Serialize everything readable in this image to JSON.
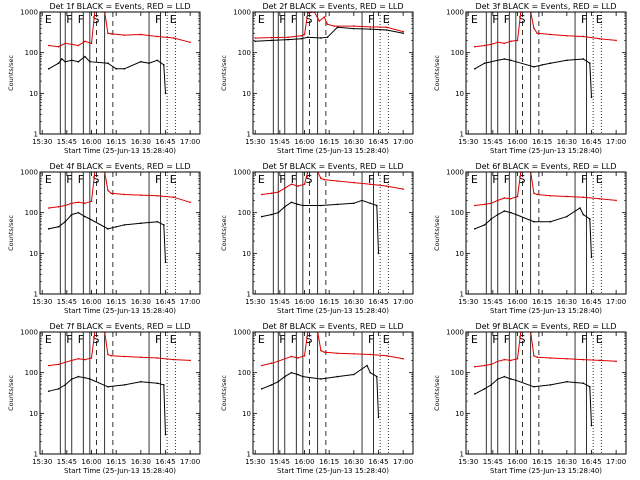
{
  "xlabel": "Start Time (25-Jun-13 15:28:40)",
  "ylabel": "Counts/sec",
  "colors": {
    "events": "#000000",
    "lld": "#dd0000",
    "frame": "#000000"
  },
  "chart_data": [
    {
      "type": "line",
      "title": "Det 1f BLACK = Events, RED = LLD",
      "xticks": [
        "15:30",
        "15:45",
        "16:00",
        "16:15",
        "16:30",
        "16:45",
        "17:00"
      ],
      "yticks": [
        "1",
        "10",
        "100",
        "1000"
      ],
      "xlim": [
        "15:28:40",
        "17:06:00"
      ],
      "ylim": [
        1,
        1000
      ],
      "yscale": "log",
      "flag_letters": [
        "E",
        "F",
        "F",
        "S",
        "F",
        "E"
      ],
      "series": [
        {
          "name": "Events",
          "x": [
            "15:34",
            "15:40",
            "15:42",
            "15:44",
            "15:48",
            "15:52",
            "15:56",
            "15:59",
            "16:10",
            "16:15",
            "16:20",
            "16:30",
            "16:35",
            "16:40",
            "16:44",
            "16:45"
          ],
          "values": [
            40,
            55,
            70,
            60,
            65,
            60,
            80,
            60,
            55,
            40,
            40,
            60,
            55,
            65,
            50,
            10
          ]
        },
        {
          "name": "LLD",
          "x": [
            "15:34",
            "15:40",
            "15:44",
            "15:48",
            "15:52",
            "15:56",
            "16:00",
            "16:02",
            "16:08",
            "16:10",
            "16:12",
            "16:20",
            "16:30",
            "16:40",
            "16:50",
            "17:00"
          ],
          "values": [
            150,
            140,
            170,
            160,
            150,
            190,
            170,
            1000,
            1000,
            300,
            290,
            270,
            280,
            250,
            230,
            180
          ]
        }
      ]
    },
    {
      "type": "line",
      "title": "Det 2f BLACK = Events, RED = LLD",
      "xticks": [
        "15:30",
        "15:45",
        "16:00",
        "16:15",
        "16:30",
        "16:45",
        "17:00"
      ],
      "yticks": [
        "1",
        "10",
        "100",
        "1000"
      ],
      "xlim": [
        "15:28:40",
        "17:06:00"
      ],
      "ylim": [
        1,
        1000
      ],
      "yscale": "log",
      "flag_letters": [
        "E",
        "F",
        "F",
        "S",
        "F",
        "E"
      ],
      "series": [
        {
          "name": "Events",
          "x": [
            "15:30",
            "15:40",
            "15:50",
            "15:58",
            "16:02",
            "16:10",
            "16:14",
            "16:20",
            "16:30",
            "16:40",
            "16:50",
            "17:00"
          ],
          "values": [
            190,
            200,
            210,
            220,
            240,
            230,
            240,
            420,
            390,
            380,
            360,
            300
          ]
        },
        {
          "name": "LLD",
          "x": [
            "15:30",
            "15:40",
            "15:50",
            "15:58",
            "16:00",
            "16:02",
            "16:06",
            "16:09",
            "16:12",
            "16:14",
            "16:18",
            "16:30",
            "16:40",
            "16:50",
            "17:00"
          ],
          "values": [
            230,
            235,
            240,
            260,
            280,
            950,
            1000,
            600,
            750,
            500,
            450,
            450,
            430,
            420,
            330
          ]
        }
      ]
    },
    {
      "type": "line",
      "title": "Det 3f BLACK = Events, RED = LLD",
      "xticks": [
        "15:30",
        "15:45",
        "16:00",
        "16:15",
        "16:30",
        "16:45",
        "17:00"
      ],
      "yticks": [
        "1",
        "10",
        "100",
        "1000"
      ],
      "xlim": [
        "15:28:40",
        "17:06:00"
      ],
      "ylim": [
        1,
        1000
      ],
      "yscale": "log",
      "flag_letters": [
        "E",
        "F",
        "F",
        "S",
        "F",
        "E"
      ],
      "series": [
        {
          "name": "Events",
          "x": [
            "15:34",
            "15:40",
            "15:44",
            "15:48",
            "15:52",
            "15:56",
            "15:59",
            "16:10",
            "16:15",
            "16:20",
            "16:30",
            "16:40",
            "16:44",
            "16:45"
          ],
          "values": [
            40,
            55,
            60,
            65,
            70,
            65,
            60,
            45,
            50,
            55,
            65,
            70,
            55,
            8
          ]
        },
        {
          "name": "LLD",
          "x": [
            "15:34",
            "15:40",
            "15:44",
            "15:48",
            "15:52",
            "15:56",
            "16:00",
            "16:02",
            "16:08",
            "16:10",
            "16:12",
            "16:20",
            "16:30",
            "16:40",
            "16:50",
            "17:00"
          ],
          "values": [
            140,
            150,
            160,
            180,
            170,
            190,
            200,
            1000,
            1000,
            400,
            300,
            280,
            260,
            250,
            220,
            200
          ]
        }
      ]
    },
    {
      "type": "line",
      "title": "Det 4f BLACK = Events, RED = LLD",
      "xticks": [
        "15:30",
        "15:45",
        "16:00",
        "16:15",
        "16:30",
        "16:45",
        "17:00"
      ],
      "yticks": [
        "1",
        "10",
        "100",
        "1000"
      ],
      "xlim": [
        "15:28:40",
        "17:06:00"
      ],
      "ylim": [
        1,
        1000
      ],
      "yscale": "log",
      "flag_letters": [
        "E",
        "F",
        "F",
        "S",
        "F",
        "E"
      ],
      "series": [
        {
          "name": "Events",
          "x": [
            "15:34",
            "15:40",
            "15:44",
            "15:48",
            "15:52",
            "15:56",
            "15:59",
            "16:10",
            "16:15",
            "16:20",
            "16:30",
            "16:40",
            "16:44",
            "16:45"
          ],
          "values": [
            40,
            45,
            60,
            90,
            100,
            80,
            70,
            40,
            45,
            50,
            55,
            60,
            50,
            6
          ]
        },
        {
          "name": "LLD",
          "x": [
            "15:34",
            "15:40",
            "15:44",
            "15:48",
            "15:52",
            "15:56",
            "16:00",
            "16:02",
            "16:08",
            "16:10",
            "16:12",
            "16:20",
            "16:30",
            "16:40",
            "16:50",
            "17:00"
          ],
          "values": [
            130,
            140,
            150,
            170,
            180,
            170,
            190,
            1000,
            1000,
            350,
            300,
            280,
            270,
            260,
            240,
            180
          ]
        }
      ]
    },
    {
      "type": "line",
      "title": "Det 5f BLACK = Events, RED = LLD",
      "xticks": [
        "15:30",
        "15:45",
        "16:00",
        "16:15",
        "16:30",
        "16:45",
        "17:00"
      ],
      "yticks": [
        "1",
        "10",
        "100",
        "1000"
      ],
      "xlim": [
        "15:28:40",
        "17:06:00"
      ],
      "ylim": [
        1,
        1000
      ],
      "yscale": "log",
      "flag_letters": [
        "E",
        "F",
        "F",
        "S",
        "F",
        "E"
      ],
      "series": [
        {
          "name": "Events",
          "x": [
            "15:34",
            "15:40",
            "15:44",
            "15:48",
            "15:52",
            "15:56",
            "15:59",
            "16:10",
            "16:20",
            "16:30",
            "16:35",
            "16:40",
            "16:44",
            "16:45"
          ],
          "values": [
            80,
            90,
            100,
            140,
            180,
            160,
            150,
            150,
            160,
            170,
            200,
            170,
            150,
            10
          ]
        },
        {
          "name": "LLD",
          "x": [
            "15:34",
            "15:40",
            "15:44",
            "15:48",
            "15:52",
            "15:56",
            "16:00",
            "16:02",
            "16:08",
            "16:10",
            "16:12",
            "16:20",
            "16:30",
            "16:40",
            "16:50",
            "17:00"
          ],
          "values": [
            280,
            300,
            320,
            400,
            500,
            450,
            500,
            1000,
            1000,
            700,
            650,
            600,
            550,
            500,
            450,
            380
          ]
        }
      ]
    },
    {
      "type": "line",
      "title": "Det 6f BLACK = Events, RED = LLD",
      "xticks": [
        "15:30",
        "15:45",
        "16:00",
        "16:15",
        "16:30",
        "16:45",
        "17:00"
      ],
      "yticks": [
        "1",
        "10",
        "100",
        "1000"
      ],
      "xlim": [
        "15:28:40",
        "17:06:00"
      ],
      "ylim": [
        1,
        1000
      ],
      "yscale": "log",
      "flag_letters": [
        "E",
        "F",
        "F",
        "S",
        "F",
        "E"
      ],
      "series": [
        {
          "name": "Events",
          "x": [
            "15:34",
            "15:40",
            "15:44",
            "15:48",
            "15:52",
            "15:56",
            "15:59",
            "16:10",
            "16:20",
            "16:30",
            "16:38",
            "16:40",
            "16:44",
            "16:45"
          ],
          "values": [
            40,
            50,
            70,
            90,
            110,
            100,
            90,
            60,
            60,
            80,
            130,
            90,
            70,
            8
          ]
        },
        {
          "name": "LLD",
          "x": [
            "15:34",
            "15:40",
            "15:44",
            "15:48",
            "15:52",
            "15:56",
            "16:00",
            "16:02",
            "16:08",
            "16:10",
            "16:12",
            "16:20",
            "16:30",
            "16:40",
            "16:50",
            "17:00"
          ],
          "values": [
            150,
            160,
            170,
            200,
            230,
            220,
            250,
            1000,
            1000,
            300,
            280,
            260,
            250,
            240,
            220,
            200
          ]
        }
      ]
    },
    {
      "type": "line",
      "title": "Det 7f BLACK = Events, RED = LLD",
      "xticks": [
        "15:30",
        "15:45",
        "16:00",
        "16:15",
        "16:30",
        "16:45",
        "17:00"
      ],
      "yticks": [
        "1",
        "10",
        "100",
        "1000"
      ],
      "xlim": [
        "15:28:40",
        "17:06:00"
      ],
      "ylim": [
        1,
        1000
      ],
      "yscale": "log",
      "flag_letters": [
        "E",
        "F",
        "F",
        "S",
        "F",
        "E"
      ],
      "series": [
        {
          "name": "Events",
          "x": [
            "15:34",
            "15:40",
            "15:44",
            "15:48",
            "15:52",
            "15:56",
            "15:59",
            "16:10",
            "16:20",
            "16:30",
            "16:40",
            "16:44",
            "16:45"
          ],
          "values": [
            35,
            40,
            50,
            70,
            80,
            75,
            70,
            45,
            50,
            60,
            55,
            50,
            3
          ]
        },
        {
          "name": "LLD",
          "x": [
            "15:34",
            "15:40",
            "15:44",
            "15:48",
            "15:52",
            "15:56",
            "16:00",
            "16:02",
            "16:08",
            "16:10",
            "16:12",
            "16:20",
            "16:30",
            "16:40",
            "16:50",
            "17:00"
          ],
          "values": [
            150,
            160,
            180,
            200,
            220,
            210,
            230,
            1000,
            1000,
            280,
            260,
            250,
            240,
            230,
            210,
            200
          ]
        }
      ]
    },
    {
      "type": "line",
      "title": "Det 8f BLACK = Events, RED = LLD",
      "xticks": [
        "15:30",
        "15:45",
        "16:00",
        "16:15",
        "16:30",
        "16:45",
        "17:00"
      ],
      "yticks": [
        "1",
        "10",
        "100",
        "1000"
      ],
      "xlim": [
        "15:28:40",
        "17:06:00"
      ],
      "ylim": [
        1,
        1000
      ],
      "yscale": "log",
      "flag_letters": [
        "E",
        "F",
        "F",
        "S",
        "F",
        "E"
      ],
      "series": [
        {
          "name": "Events",
          "x": [
            "15:34",
            "15:40",
            "15:44",
            "15:48",
            "15:52",
            "15:56",
            "15:59",
            "16:10",
            "16:20",
            "16:30",
            "16:38",
            "16:40",
            "16:44",
            "16:45"
          ],
          "values": [
            40,
            50,
            60,
            80,
            100,
            90,
            80,
            70,
            80,
            90,
            150,
            100,
            80,
            8
          ]
        },
        {
          "name": "LLD",
          "x": [
            "15:34",
            "15:40",
            "15:44",
            "15:48",
            "15:52",
            "15:56",
            "16:00",
            "16:02",
            "16:08",
            "16:10",
            "16:12",
            "16:20",
            "16:30",
            "16:40",
            "16:50",
            "17:00"
          ],
          "values": [
            150,
            170,
            190,
            220,
            250,
            230,
            260,
            1000,
            1000,
            350,
            320,
            300,
            290,
            280,
            260,
            220
          ]
        }
      ]
    },
    {
      "type": "line",
      "title": "Det 9f BLACK = Events, RED = LLD",
      "xticks": [
        "15:30",
        "15:45",
        "16:00",
        "16:15",
        "16:30",
        "16:45",
        "17:00"
      ],
      "yticks": [
        "1",
        "10",
        "100",
        "1000"
      ],
      "xlim": [
        "15:28:40",
        "17:06:00"
      ],
      "ylim": [
        1,
        1000
      ],
      "yscale": "log",
      "flag_letters": [
        "E",
        "F",
        "F",
        "S",
        "F",
        "E"
      ],
      "series": [
        {
          "name": "Events",
          "x": [
            "15:34",
            "15:40",
            "15:44",
            "15:48",
            "15:52",
            "15:56",
            "15:59",
            "16:10",
            "16:20",
            "16:30",
            "16:40",
            "16:44",
            "16:45"
          ],
          "values": [
            30,
            40,
            50,
            70,
            80,
            70,
            65,
            45,
            50,
            60,
            55,
            45,
            5
          ]
        },
        {
          "name": "LLD",
          "x": [
            "15:34",
            "15:40",
            "15:44",
            "15:48",
            "15:52",
            "15:56",
            "16:00",
            "16:02",
            "16:08",
            "16:10",
            "16:12",
            "16:20",
            "16:30",
            "16:40",
            "16:50",
            "17:00"
          ],
          "values": [
            140,
            150,
            160,
            190,
            210,
            200,
            220,
            1000,
            1000,
            260,
            240,
            230,
            220,
            210,
            200,
            190
          ]
        }
      ]
    }
  ]
}
